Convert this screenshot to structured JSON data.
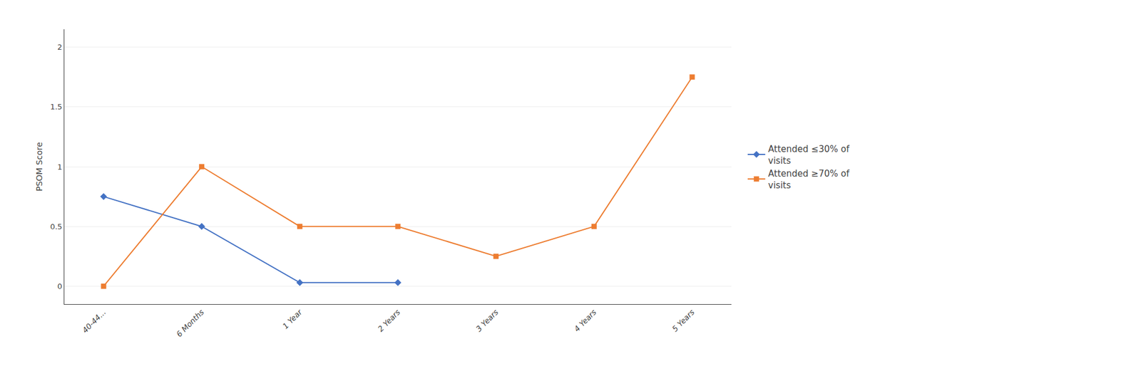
{
  "chart_data": {
    "type": "line",
    "categories": [
      "40-44...",
      "6 Months",
      "1 Year",
      "2 Years",
      "3 Years",
      "4 Years",
      "5 Years"
    ],
    "series": [
      {
        "name": "Attended ≤30% of\nvisits",
        "color": "#4472C4",
        "marker": "diamond",
        "values": [
          0.75,
          0.5,
          0.03,
          0.03,
          null,
          null,
          null
        ]
      },
      {
        "name": "Attended ≥70% of\nvisits",
        "color": "#ED7D31",
        "marker": "square",
        "values": [
          0.0,
          1.0,
          0.5,
          0.5,
          0.25,
          0.5,
          1.75
        ]
      }
    ],
    "ylabel": "PSOM Score",
    "ylim": [
      -0.15,
      2.15
    ],
    "yticks": [
      0,
      0.5,
      1,
      1.5,
      2
    ],
    "grid": true,
    "legend": "right"
  }
}
